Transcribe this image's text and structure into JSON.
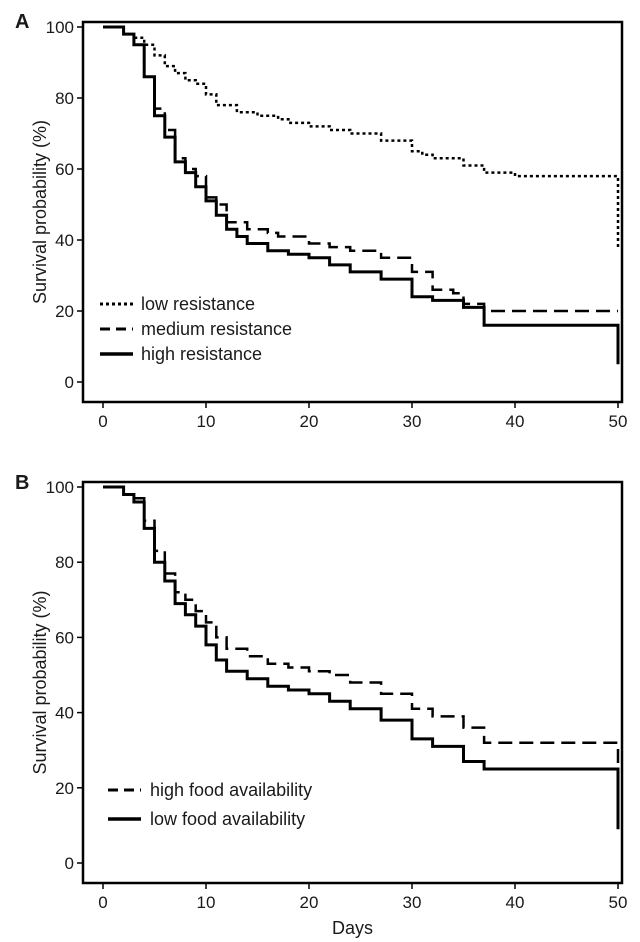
{
  "chart_data": [
    {
      "panel": "A",
      "type": "line",
      "xlabel": "",
      "ylabel": "Survival probability (%)",
      "xlim": [
        0,
        50
      ],
      "ylim": [
        0,
        100
      ],
      "xticks": [
        0,
        10,
        20,
        30,
        40,
        50
      ],
      "yticks": [
        0,
        20,
        40,
        60,
        80,
        100
      ],
      "grid": false,
      "legend_position": "lower-left",
      "series": [
        {
          "name": "low resistance",
          "style": "dotted",
          "width": 2.5,
          "points": [
            [
              0,
              100
            ],
            [
              2,
              100
            ],
            [
              2,
              98
            ],
            [
              3,
              98
            ],
            [
              3,
              97
            ],
            [
              4,
              97
            ],
            [
              4,
              95
            ],
            [
              5,
              95
            ],
            [
              5,
              92
            ],
            [
              6,
              92
            ],
            [
              6,
              89
            ],
            [
              7,
              89
            ],
            [
              7,
              87
            ],
            [
              8,
              87
            ],
            [
              8,
              85
            ],
            [
              9,
              85
            ],
            [
              9,
              84
            ],
            [
              10,
              84
            ],
            [
              10,
              81
            ],
            [
              11,
              81
            ],
            [
              11,
              78
            ],
            [
              13,
              78
            ],
            [
              13,
              76
            ],
            [
              15,
              76
            ],
            [
              15,
              75
            ],
            [
              17,
              75
            ],
            [
              17,
              74
            ],
            [
              18,
              74
            ],
            [
              18,
              73
            ],
            [
              20,
              73
            ],
            [
              20,
              72
            ],
            [
              22,
              72
            ],
            [
              22,
              71
            ],
            [
              24,
              71
            ],
            [
              24,
              70
            ],
            [
              27,
              70
            ],
            [
              27,
              68
            ],
            [
              30,
              68
            ],
            [
              30,
              65
            ],
            [
              31,
              65
            ],
            [
              31,
              64
            ],
            [
              32,
              64
            ],
            [
              32,
              63
            ],
            [
              35,
              63
            ],
            [
              35,
              61
            ],
            [
              37,
              61
            ],
            [
              37,
              59
            ],
            [
              40,
              59
            ],
            [
              40,
              58
            ],
            [
              50,
              58
            ],
            [
              50,
              38
            ]
          ]
        },
        {
          "name": "medium resistance",
          "style": "dashed",
          "width": 2.5,
          "points": [
            [
              0,
              100
            ],
            [
              2,
              100
            ],
            [
              2,
              98
            ],
            [
              3,
              98
            ],
            [
              3,
              95
            ],
            [
              4,
              95
            ],
            [
              4,
              86
            ],
            [
              5,
              86
            ],
            [
              5,
              77
            ],
            [
              6,
              77
            ],
            [
              6,
              71
            ],
            [
              7,
              71
            ],
            [
              7,
              63
            ],
            [
              8,
              63
            ],
            [
              8,
              60
            ],
            [
              9,
              60
            ],
            [
              9,
              58
            ],
            [
              10,
              58
            ],
            [
              10,
              52
            ],
            [
              11,
              52
            ],
            [
              11,
              50
            ],
            [
              12,
              50
            ],
            [
              12,
              45
            ],
            [
              14,
              45
            ],
            [
              14,
              43
            ],
            [
              16,
              43
            ],
            [
              16,
              42
            ],
            [
              17,
              42
            ],
            [
              17,
              41
            ],
            [
              20,
              41
            ],
            [
              20,
              39
            ],
            [
              22,
              39
            ],
            [
              22,
              38
            ],
            [
              24,
              38
            ],
            [
              24,
              37
            ],
            [
              27,
              37
            ],
            [
              27,
              35
            ],
            [
              30,
              35
            ],
            [
              30,
              31
            ],
            [
              32,
              31
            ],
            [
              32,
              26
            ],
            [
              34,
              26
            ],
            [
              34,
              25
            ],
            [
              35,
              25
            ],
            [
              35,
              22
            ],
            [
              37,
              22
            ],
            [
              37,
              20
            ],
            [
              50,
              20
            ]
          ]
        },
        {
          "name": "high resistance",
          "style": "solid",
          "width": 3,
          "points": [
            [
              0,
              100
            ],
            [
              2,
              100
            ],
            [
              2,
              98
            ],
            [
              3,
              98
            ],
            [
              3,
              95
            ],
            [
              4,
              95
            ],
            [
              4,
              86
            ],
            [
              5,
              86
            ],
            [
              5,
              75
            ],
            [
              6,
              75
            ],
            [
              6,
              69
            ],
            [
              7,
              69
            ],
            [
              7,
              62
            ],
            [
              8,
              62
            ],
            [
              8,
              59
            ],
            [
              9,
              59
            ],
            [
              9,
              55
            ],
            [
              10,
              55
            ],
            [
              10,
              51
            ],
            [
              11,
              51
            ],
            [
              11,
              47
            ],
            [
              12,
              47
            ],
            [
              12,
              43
            ],
            [
              13,
              43
            ],
            [
              13,
              41
            ],
            [
              14,
              41
            ],
            [
              14,
              39
            ],
            [
              16,
              39
            ],
            [
              16,
              37
            ],
            [
              18,
              37
            ],
            [
              18,
              36
            ],
            [
              20,
              36
            ],
            [
              20,
              35
            ],
            [
              22,
              35
            ],
            [
              22,
              33
            ],
            [
              24,
              33
            ],
            [
              24,
              31
            ],
            [
              27,
              31
            ],
            [
              27,
              29
            ],
            [
              30,
              29
            ],
            [
              30,
              24
            ],
            [
              32,
              24
            ],
            [
              32,
              23
            ],
            [
              35,
              23
            ],
            [
              35,
              21
            ],
            [
              37,
              21
            ],
            [
              37,
              16
            ],
            [
              50,
              16
            ],
            [
              50,
              5
            ]
          ]
        }
      ]
    },
    {
      "panel": "B",
      "type": "line",
      "xlabel": "Days",
      "ylabel": "Survival probability (%)",
      "xlim": [
        0,
        50
      ],
      "ylim": [
        0,
        100
      ],
      "xticks": [
        0,
        10,
        20,
        30,
        40,
        50
      ],
      "yticks": [
        0,
        20,
        40,
        60,
        80,
        100
      ],
      "grid": false,
      "legend_position": "lower-left",
      "series": [
        {
          "name": "high food availability",
          "style": "dashed",
          "width": 2.5,
          "points": [
            [
              0,
              100
            ],
            [
              2,
              100
            ],
            [
              2,
              98
            ],
            [
              3,
              98
            ],
            [
              3,
              97
            ],
            [
              4,
              97
            ],
            [
              4,
              91
            ],
            [
              5,
              91
            ],
            [
              5,
              83
            ],
            [
              6,
              83
            ],
            [
              6,
              77
            ],
            [
              7,
              77
            ],
            [
              7,
              72
            ],
            [
              8,
              72
            ],
            [
              8,
              70
            ],
            [
              9,
              70
            ],
            [
              9,
              67
            ],
            [
              10,
              67
            ],
            [
              10,
              64
            ],
            [
              11,
              64
            ],
            [
              11,
              60
            ],
            [
              12,
              60
            ],
            [
              12,
              57
            ],
            [
              14,
              57
            ],
            [
              14,
              55
            ],
            [
              16,
              55
            ],
            [
              16,
              53
            ],
            [
              18,
              53
            ],
            [
              18,
              52
            ],
            [
              20,
              52
            ],
            [
              20,
              51
            ],
            [
              22,
              51
            ],
            [
              22,
              50
            ],
            [
              24,
              50
            ],
            [
              24,
              48
            ],
            [
              27,
              48
            ],
            [
              27,
              45
            ],
            [
              30,
              45
            ],
            [
              30,
              41
            ],
            [
              32,
              41
            ],
            [
              32,
              39
            ],
            [
              35,
              39
            ],
            [
              35,
              36
            ],
            [
              37,
              36
            ],
            [
              37,
              32
            ],
            [
              50,
              32
            ],
            [
              50,
              8
            ]
          ]
        },
        {
          "name": "low food availability",
          "style": "solid",
          "width": 3,
          "points": [
            [
              0,
              100
            ],
            [
              2,
              100
            ],
            [
              2,
              98
            ],
            [
              3,
              98
            ],
            [
              3,
              96
            ],
            [
              4,
              96
            ],
            [
              4,
              89
            ],
            [
              5,
              89
            ],
            [
              5,
              80
            ],
            [
              6,
              80
            ],
            [
              6,
              75
            ],
            [
              7,
              75
            ],
            [
              7,
              69
            ],
            [
              8,
              69
            ],
            [
              8,
              66
            ],
            [
              9,
              66
            ],
            [
              9,
              63
            ],
            [
              10,
              63
            ],
            [
              10,
              58
            ],
            [
              11,
              58
            ],
            [
              11,
              54
            ],
            [
              12,
              54
            ],
            [
              12,
              51
            ],
            [
              14,
              51
            ],
            [
              14,
              49
            ],
            [
              16,
              49
            ],
            [
              16,
              47
            ],
            [
              18,
              47
            ],
            [
              18,
              46
            ],
            [
              20,
              46
            ],
            [
              20,
              45
            ],
            [
              22,
              45
            ],
            [
              22,
              43
            ],
            [
              24,
              43
            ],
            [
              24,
              41
            ],
            [
              27,
              41
            ],
            [
              27,
              38
            ],
            [
              30,
              38
            ],
            [
              30,
              33
            ],
            [
              32,
              33
            ],
            [
              32,
              31
            ],
            [
              35,
              31
            ],
            [
              35,
              27
            ],
            [
              37,
              27
            ],
            [
              37,
              25
            ],
            [
              50,
              25
            ],
            [
              50,
              9
            ]
          ]
        }
      ]
    }
  ]
}
